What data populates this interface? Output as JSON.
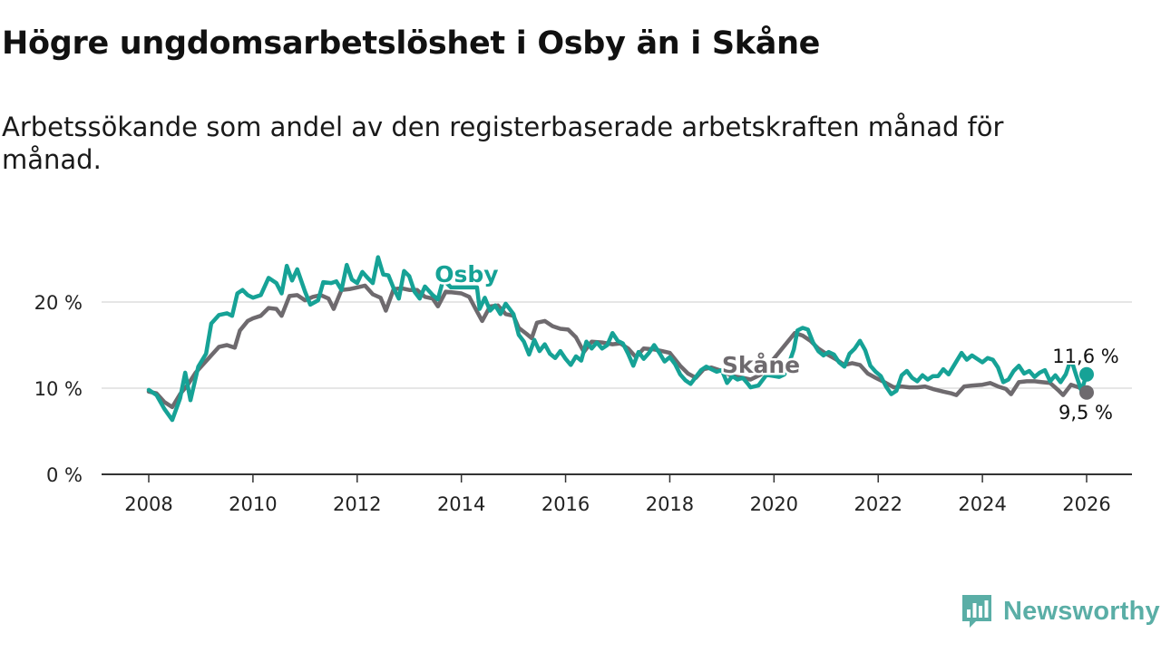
{
  "title": "Högre ungdomsarbetslöshet i Osby än i Skåne",
  "subtitle": "Arbetssökande som andel av den registerbaserade arbetskraften månad för månad.",
  "brand": {
    "name": "Newsworthy",
    "icon": "newsworthy-bar-chart-icon"
  },
  "colors": {
    "osby": "#16a296",
    "skane": "#6e6a6e",
    "grid": "#dddddd",
    "axis": "#333333"
  },
  "chart_data": {
    "type": "line",
    "xlabel": "",
    "ylabel": "",
    "xlim": [
      2008,
      2026.5
    ],
    "ylim": [
      0,
      25
    ],
    "xticks": [
      2008,
      2010,
      2012,
      2014,
      2016,
      2018,
      2020,
      2022,
      2024,
      2026
    ],
    "yticks": [
      {
        "value": 0,
        "label": "0 %"
      },
      {
        "value": 10,
        "label": "10 %"
      },
      {
        "value": 20,
        "label": "20 %"
      }
    ],
    "grid": "horizontal",
    "series": [
      {
        "name": "Osby",
        "end_label": "11,6 %",
        "points": [
          [
            2008.0,
            9.8
          ],
          [
            2008.15,
            9.2
          ],
          [
            2008.3,
            7.6
          ],
          [
            2008.45,
            6.3
          ],
          [
            2008.6,
            8.8
          ],
          [
            2008.7,
            11.8
          ],
          [
            2008.8,
            8.6
          ],
          [
            2008.95,
            12.5
          ],
          [
            2009.1,
            14.0
          ],
          [
            2009.2,
            17.5
          ],
          [
            2009.35,
            18.5
          ],
          [
            2009.5,
            18.7
          ],
          [
            2009.6,
            18.4
          ],
          [
            2009.7,
            21.0
          ],
          [
            2009.8,
            21.4
          ],
          [
            2009.9,
            20.8
          ],
          [
            2010.0,
            20.5
          ],
          [
            2010.15,
            20.8
          ],
          [
            2010.3,
            22.8
          ],
          [
            2010.45,
            22.2
          ],
          [
            2010.55,
            21.0
          ],
          [
            2010.65,
            24.2
          ],
          [
            2010.75,
            22.5
          ],
          [
            2010.85,
            23.8
          ],
          [
            2011.0,
            21.2
          ],
          [
            2011.1,
            19.7
          ],
          [
            2011.25,
            20.2
          ],
          [
            2011.35,
            22.3
          ],
          [
            2011.5,
            22.2
          ],
          [
            2011.6,
            22.4
          ],
          [
            2011.7,
            21.4
          ],
          [
            2011.8,
            24.3
          ],
          [
            2011.9,
            22.6
          ],
          [
            2012.0,
            22.2
          ],
          [
            2012.1,
            23.5
          ],
          [
            2012.2,
            22.8
          ],
          [
            2012.3,
            22.2
          ],
          [
            2012.4,
            25.2
          ],
          [
            2012.5,
            23.2
          ],
          [
            2012.6,
            23.1
          ],
          [
            2012.7,
            21.6
          ],
          [
            2012.8,
            20.4
          ],
          [
            2012.9,
            23.6
          ],
          [
            2013.0,
            23.0
          ],
          [
            2013.1,
            21.2
          ],
          [
            2013.2,
            20.4
          ],
          [
            2013.3,
            21.8
          ],
          [
            2013.45,
            20.8
          ],
          [
            2013.55,
            20.3
          ],
          [
            2013.65,
            22.6
          ],
          [
            2013.8,
            21.7
          ],
          [
            2014.3,
            21.7
          ],
          [
            2014.35,
            19.2
          ],
          [
            2014.45,
            20.5
          ],
          [
            2014.55,
            19.0
          ],
          [
            2014.65,
            19.6
          ],
          [
            2014.75,
            18.6
          ],
          [
            2014.85,
            19.8
          ],
          [
            2015.0,
            18.6
          ],
          [
            2015.1,
            16.2
          ],
          [
            2015.2,
            15.4
          ],
          [
            2015.3,
            13.9
          ],
          [
            2015.4,
            15.6
          ],
          [
            2015.5,
            14.3
          ],
          [
            2015.6,
            15.1
          ],
          [
            2015.7,
            14.0
          ],
          [
            2015.8,
            13.5
          ],
          [
            2015.9,
            14.3
          ],
          [
            2016.0,
            13.4
          ],
          [
            2016.1,
            12.7
          ],
          [
            2016.2,
            13.7
          ],
          [
            2016.3,
            13.2
          ],
          [
            2016.4,
            15.4
          ],
          [
            2016.5,
            14.6
          ],
          [
            2016.6,
            15.3
          ],
          [
            2016.7,
            14.6
          ],
          [
            2016.8,
            15.0
          ],
          [
            2016.9,
            16.4
          ],
          [
            2017.0,
            15.5
          ],
          [
            2017.1,
            15.2
          ],
          [
            2017.2,
            14.0
          ],
          [
            2017.3,
            12.6
          ],
          [
            2017.4,
            14.2
          ],
          [
            2017.5,
            13.4
          ],
          [
            2017.6,
            14.1
          ],
          [
            2017.7,
            15.0
          ],
          [
            2017.8,
            14.1
          ],
          [
            2017.9,
            13.1
          ],
          [
            2018.0,
            13.6
          ],
          [
            2018.1,
            12.8
          ],
          [
            2018.2,
            11.6
          ],
          [
            2018.3,
            10.9
          ],
          [
            2018.4,
            10.5
          ],
          [
            2018.5,
            11.3
          ],
          [
            2018.6,
            12.1
          ],
          [
            2018.7,
            12.5
          ],
          [
            2018.8,
            12.2
          ],
          [
            2018.9,
            11.9
          ],
          [
            2019.0,
            12.1
          ],
          [
            2019.1,
            10.6
          ],
          [
            2019.2,
            11.4
          ],
          [
            2019.3,
            11.0
          ],
          [
            2019.4,
            11.2
          ],
          [
            2019.5,
            10.5
          ],
          [
            2019.55,
            10.1
          ],
          [
            2019.7,
            10.3
          ],
          [
            2019.85,
            11.5
          ],
          [
            2019.9,
            11.5
          ],
          [
            2020.0,
            11.4
          ],
          [
            2020.1,
            11.3
          ],
          [
            2020.2,
            11.6
          ],
          [
            2020.3,
            13.1
          ],
          [
            2020.38,
            14.5
          ],
          [
            2020.45,
            16.7
          ],
          [
            2020.55,
            17.0
          ],
          [
            2020.65,
            16.8
          ],
          [
            2020.75,
            15.3
          ],
          [
            2020.85,
            14.3
          ],
          [
            2020.95,
            13.8
          ],
          [
            2021.05,
            14.2
          ],
          [
            2021.15,
            13.9
          ],
          [
            2021.25,
            13.0
          ],
          [
            2021.35,
            12.5
          ],
          [
            2021.45,
            14.0
          ],
          [
            2021.55,
            14.6
          ],
          [
            2021.65,
            15.5
          ],
          [
            2021.75,
            14.4
          ],
          [
            2021.85,
            12.6
          ],
          [
            2021.95,
            11.9
          ],
          [
            2022.05,
            11.4
          ],
          [
            2022.15,
            10.2
          ],
          [
            2022.25,
            9.3
          ],
          [
            2022.35,
            9.7
          ],
          [
            2022.45,
            11.5
          ],
          [
            2022.55,
            12.0
          ],
          [
            2022.65,
            11.2
          ],
          [
            2022.75,
            10.8
          ],
          [
            2022.85,
            11.5
          ],
          [
            2022.95,
            11.0
          ],
          [
            2023.05,
            11.4
          ],
          [
            2023.15,
            11.4
          ],
          [
            2023.25,
            12.2
          ],
          [
            2023.35,
            11.6
          ],
          [
            2023.5,
            13.1
          ],
          [
            2023.6,
            14.1
          ],
          [
            2023.7,
            13.3
          ],
          [
            2023.8,
            13.8
          ],
          [
            2023.9,
            13.4
          ],
          [
            2024.0,
            13.0
          ],
          [
            2024.1,
            13.5
          ],
          [
            2024.2,
            13.3
          ],
          [
            2024.3,
            12.4
          ],
          [
            2024.4,
            10.7
          ],
          [
            2024.5,
            11.0
          ],
          [
            2024.6,
            12.0
          ],
          [
            2024.7,
            12.6
          ],
          [
            2024.8,
            11.7
          ],
          [
            2024.9,
            12.0
          ],
          [
            2025.0,
            11.3
          ],
          [
            2025.1,
            11.8
          ],
          [
            2025.2,
            12.1
          ],
          [
            2025.3,
            10.8
          ],
          [
            2025.4,
            11.5
          ],
          [
            2025.5,
            10.7
          ],
          [
            2025.6,
            11.6
          ],
          [
            2025.7,
            13.4
          ],
          [
            2025.8,
            11.5
          ],
          [
            2025.9,
            9.7
          ],
          [
            2026.0,
            11.6
          ]
        ]
      },
      {
        "name": "Skåne",
        "end_label": "9,5 %",
        "points": [
          [
            2008.0,
            9.6
          ],
          [
            2008.15,
            9.4
          ],
          [
            2008.3,
            8.4
          ],
          [
            2008.45,
            7.8
          ],
          [
            2008.6,
            9.3
          ],
          [
            2008.75,
            10.4
          ],
          [
            2008.9,
            11.8
          ],
          [
            2009.05,
            12.8
          ],
          [
            2009.2,
            13.8
          ],
          [
            2009.35,
            14.8
          ],
          [
            2009.5,
            15.0
          ],
          [
            2009.65,
            14.7
          ],
          [
            2009.75,
            16.7
          ],
          [
            2009.9,
            17.8
          ],
          [
            2010.0,
            18.1
          ],
          [
            2010.15,
            18.4
          ],
          [
            2010.3,
            19.3
          ],
          [
            2010.45,
            19.2
          ],
          [
            2010.55,
            18.4
          ],
          [
            2010.7,
            20.7
          ],
          [
            2010.85,
            20.8
          ],
          [
            2011.0,
            20.2
          ],
          [
            2011.15,
            20.6
          ],
          [
            2011.3,
            20.8
          ],
          [
            2011.45,
            20.4
          ],
          [
            2011.55,
            19.2
          ],
          [
            2011.7,
            21.4
          ],
          [
            2011.85,
            21.5
          ],
          [
            2012.0,
            21.7
          ],
          [
            2012.15,
            21.9
          ],
          [
            2012.3,
            20.9
          ],
          [
            2012.45,
            20.5
          ],
          [
            2012.55,
            19.0
          ],
          [
            2012.7,
            21.5
          ],
          [
            2012.85,
            21.6
          ],
          [
            2013.0,
            21.4
          ],
          [
            2013.15,
            21.4
          ],
          [
            2013.3,
            20.6
          ],
          [
            2013.45,
            20.4
          ],
          [
            2013.55,
            19.5
          ],
          [
            2013.7,
            21.2
          ],
          [
            2013.85,
            21.1
          ],
          [
            2014.0,
            21.0
          ],
          [
            2014.15,
            20.6
          ],
          [
            2014.3,
            18.9
          ],
          [
            2014.4,
            17.8
          ],
          [
            2014.55,
            19.5
          ],
          [
            2014.7,
            19.6
          ],
          [
            2014.85,
            18.6
          ],
          [
            2015.0,
            18.4
          ],
          [
            2015.1,
            17.0
          ],
          [
            2015.25,
            16.3
          ],
          [
            2015.35,
            15.8
          ],
          [
            2015.45,
            17.6
          ],
          [
            2015.6,
            17.8
          ],
          [
            2015.75,
            17.2
          ],
          [
            2015.9,
            16.9
          ],
          [
            2016.05,
            16.8
          ],
          [
            2016.2,
            15.9
          ],
          [
            2016.35,
            14.2
          ],
          [
            2016.5,
            15.4
          ],
          [
            2016.7,
            15.3
          ],
          [
            2016.9,
            15.1
          ],
          [
            2017.05,
            15.2
          ],
          [
            2017.2,
            14.6
          ],
          [
            2017.35,
            13.6
          ],
          [
            2017.5,
            14.6
          ],
          [
            2017.7,
            14.5
          ],
          [
            2017.85,
            14.3
          ],
          [
            2018.0,
            14.1
          ],
          [
            2018.2,
            12.6
          ],
          [
            2018.35,
            11.7
          ],
          [
            2018.5,
            11.2
          ],
          [
            2018.65,
            12.2
          ],
          [
            2018.8,
            12.4
          ],
          [
            2019.0,
            12.0
          ],
          [
            2019.2,
            11.4
          ],
          [
            2019.4,
            11.2
          ],
          [
            2019.55,
            11.0
          ],
          [
            2019.75,
            11.6
          ],
          [
            2020.4,
            16.4
          ],
          [
            2020.55,
            16.1
          ],
          [
            2020.7,
            15.5
          ],
          [
            2020.85,
            14.6
          ],
          [
            2021.0,
            14.0
          ],
          [
            2021.2,
            13.3
          ],
          [
            2021.35,
            12.7
          ],
          [
            2021.5,
            12.9
          ],
          [
            2021.65,
            12.7
          ],
          [
            2021.8,
            11.7
          ],
          [
            2021.95,
            11.2
          ],
          [
            2022.15,
            10.6
          ],
          [
            2022.3,
            10.1
          ],
          [
            2022.45,
            10.2
          ],
          [
            2022.6,
            10.1
          ],
          [
            2022.75,
            10.1
          ],
          [
            2022.9,
            10.2
          ],
          [
            2023.05,
            9.9
          ],
          [
            2023.25,
            9.6
          ],
          [
            2023.4,
            9.4
          ],
          [
            2023.5,
            9.2
          ],
          [
            2023.65,
            10.2
          ],
          [
            2023.8,
            10.3
          ],
          [
            2024.0,
            10.4
          ],
          [
            2024.15,
            10.6
          ],
          [
            2024.3,
            10.2
          ],
          [
            2024.45,
            9.9
          ],
          [
            2024.55,
            9.3
          ],
          [
            2024.7,
            10.7
          ],
          [
            2024.85,
            10.8
          ],
          [
            2025.0,
            10.8
          ],
          [
            2025.15,
            10.7
          ],
          [
            2025.3,
            10.6
          ],
          [
            2025.45,
            9.8
          ],
          [
            2025.55,
            9.2
          ],
          [
            2025.7,
            10.4
          ],
          [
            2025.85,
            10.1
          ],
          [
            2026.0,
            9.5
          ]
        ]
      }
    ],
    "annotations": [
      {
        "text": "Osby",
        "series": "Osby",
        "x": 2014.1,
        "y": 22.3
      },
      {
        "text": "Skåne",
        "series": "Skåne",
        "x": 2019.75,
        "y": 11.8
      }
    ]
  }
}
